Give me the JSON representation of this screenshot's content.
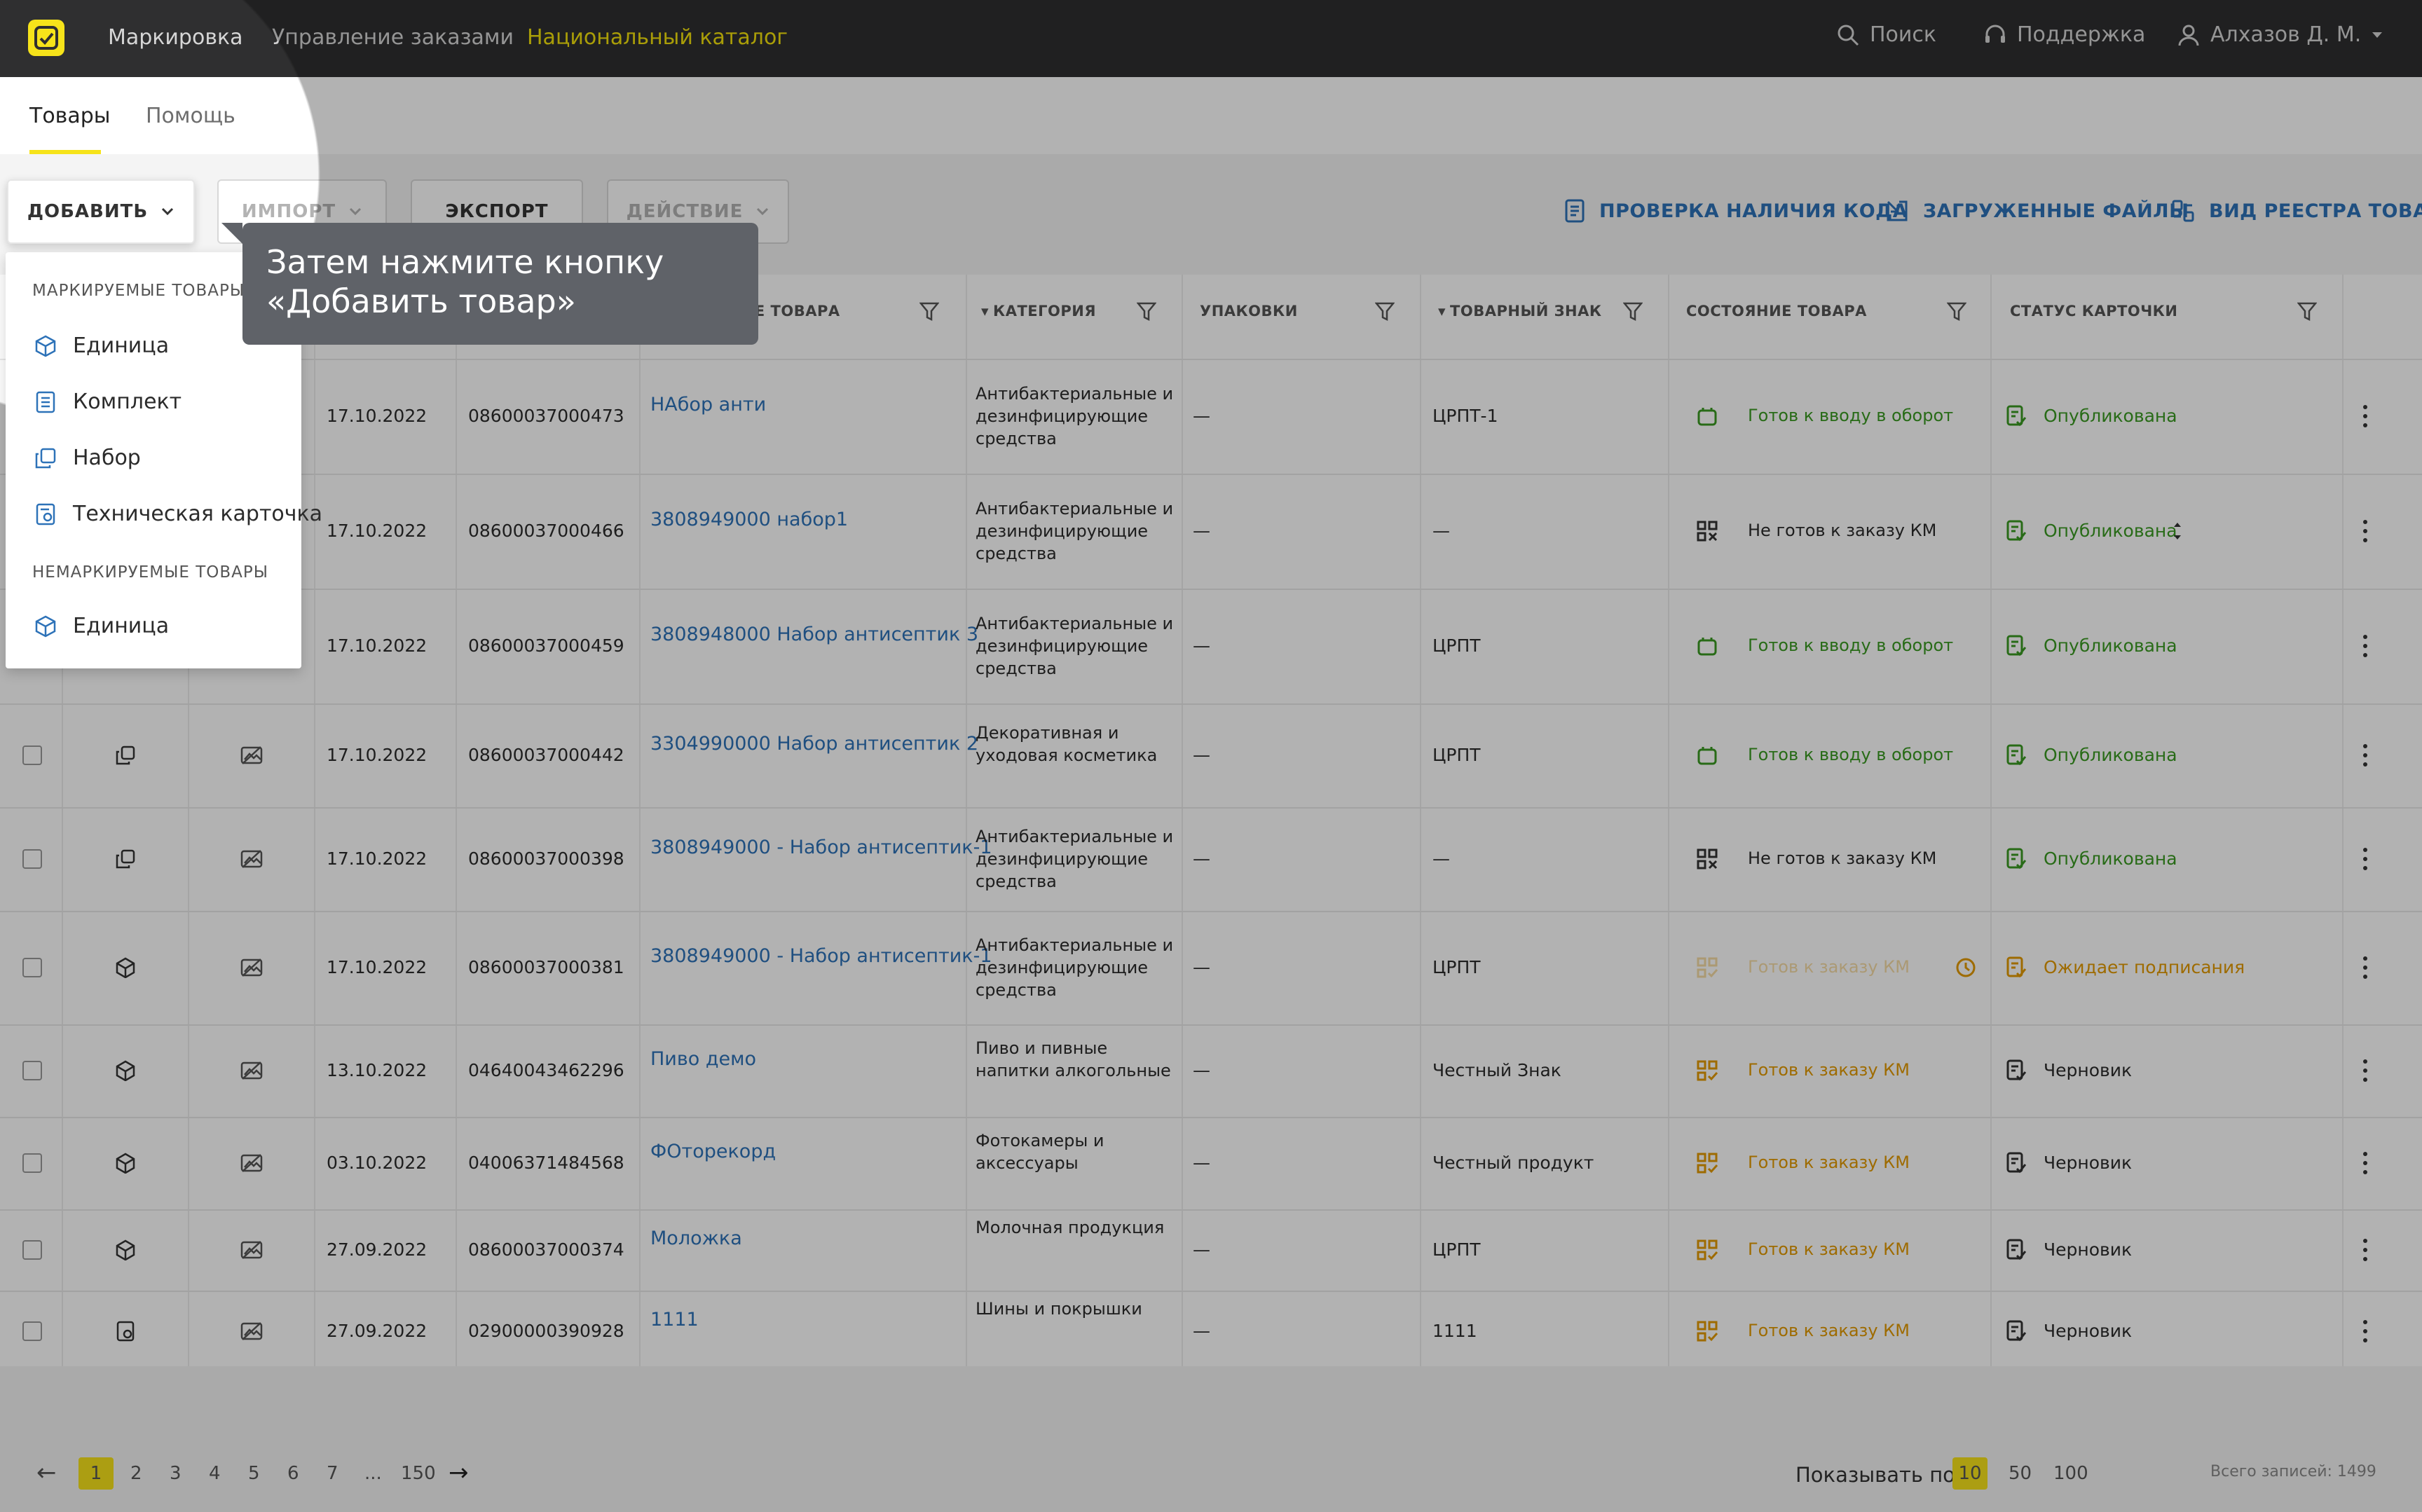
{
  "topbar": {
    "nav": [
      "Маркировка",
      "Управление заказами",
      "Национальный каталог"
    ],
    "search": "Поиск",
    "support": "Поддержка",
    "user": "Алхазов Д. М."
  },
  "tabs": [
    "Товары",
    "Помощь"
  ],
  "toolbar": {
    "add": "ДОБАВИТЬ",
    "import": "ИМПОРТ",
    "export": "ЭКСПОРТ",
    "action": "ДЕЙСТВИЕ",
    "check_code": "ПРОВЕРКА НАЛИЧИЯ КОДА",
    "uploaded_files": "ЗАГРУЖЕННЫЕ ФАЙЛЫ",
    "registry_view": "ВИД РЕЕСТРА ТОВАРОВ"
  },
  "dropdown": {
    "section1": "МАРКИРУЕМЫЕ ТОВАРЫ",
    "items1": [
      "Единица",
      "Комплект",
      "Набор",
      "Техническая карточка"
    ],
    "section2": "НЕМАРКИРУЕМЫЕ ТОВАРЫ",
    "items2": [
      "Единица"
    ]
  },
  "tooltip": "Затем нажмите кнопку «Добавить товар»",
  "columns": {
    "name": "АНИЕ ТОВАРА",
    "category": "КАТЕГОРИЯ",
    "packages": "УПАКОВКИ",
    "trademark": "ТОВАРНЫЙ ЗНАК",
    "state": "СОСТОЯНИЕ ТОВАРА",
    "card_status": "СТАТУС КАРТОЧКИ"
  },
  "rows": [
    {
      "date": "17.10.2022",
      "gtin": "08600037000473",
      "name": "НАбор анти",
      "category": "Антибактериальные и дезинфицирующие средства",
      "packages": "—",
      "trademark": "ЦРПТ-1",
      "state": "Готов к вводу в оборот",
      "status": "Опубликована"
    },
    {
      "date": "17.10.2022",
      "gtin": "08600037000466",
      "name": "3808949000 набор1",
      "category": "Антибактериальные и дезинфицирующие средства",
      "packages": "—",
      "trademark": "—",
      "state": "Не готов к заказу КМ",
      "status": "Опубликована"
    },
    {
      "date": "17.10.2022",
      "gtin": "08600037000459",
      "name": "3808948000 Набор антисептик 3",
      "category": "Антибактериальные и дезинфицирующие средства",
      "packages": "—",
      "trademark": "ЦРПТ",
      "state": "Готов к вводу в оборот",
      "status": "Опубликована"
    },
    {
      "date": "17.10.2022",
      "gtin": "08600037000442",
      "name": "3304990000 Набор антисептик 2",
      "category": "Декоративная и уходовая косметика",
      "packages": "—",
      "trademark": "ЦРПТ",
      "state": "Готов к вводу в оборот",
      "status": "Опубликована"
    },
    {
      "date": "17.10.2022",
      "gtin": "08600037000398",
      "name": "3808949000 - Набор антисептик-1",
      "category": "Антибактериальные и дезинфицирующие средства",
      "packages": "—",
      "trademark": "—",
      "state": "Не готов к заказу КМ",
      "status": "Опубликована"
    },
    {
      "date": "17.10.2022",
      "gtin": "08600037000381",
      "name": "3808949000 - Набор антисептик-1",
      "category": "Антибактериальные и дезинфицирующие средства",
      "packages": "—",
      "trademark": "ЦРПТ",
      "state": "Готов к заказу КМ",
      "status": "Ожидает подписания"
    },
    {
      "date": "13.10.2022",
      "gtin": "04640043462296",
      "name": "Пиво демо",
      "category": "Пиво и пивные напитки алкогольные",
      "packages": "—",
      "trademark": "Честный Знак",
      "state": "Готов к заказу КМ",
      "status": "Черновик"
    },
    {
      "date": "03.10.2022",
      "gtin": "04006371484568",
      "name": "ФОторекорд",
      "category": "Фотокамеры и аксессуары",
      "packages": "—",
      "trademark": "Честный продукт",
      "state": "Готов к заказу КМ",
      "status": "Черновик"
    },
    {
      "date": "27.09.2022",
      "gtin": "08600037000374",
      "name": "Моложка",
      "category": "Молочная продукция",
      "packages": "—",
      "trademark": "ЦРПТ",
      "state": "Готов к заказу КМ",
      "status": "Черновик"
    },
    {
      "date": "27.09.2022",
      "gtin": "02900000390928",
      "name": "1111",
      "category": "Шины и покрышки",
      "packages": "—",
      "trademark": "1111",
      "state": "Готов к заказу КМ",
      "status": "Черновик"
    }
  ],
  "pagination": {
    "pages": [
      "1",
      "2",
      "3",
      "4",
      "5",
      "6",
      "7",
      "...",
      "150"
    ],
    "show_label": "Показывать по:",
    "sizes": [
      "10",
      "50",
      "100"
    ],
    "total": "Всего записей: 1499"
  },
  "colors": {
    "accent": "#f6e31a",
    "link": "#2d72b8",
    "green": "#3a9a22",
    "orange": "#e39a00",
    "topbar": "#2f2f30"
  }
}
